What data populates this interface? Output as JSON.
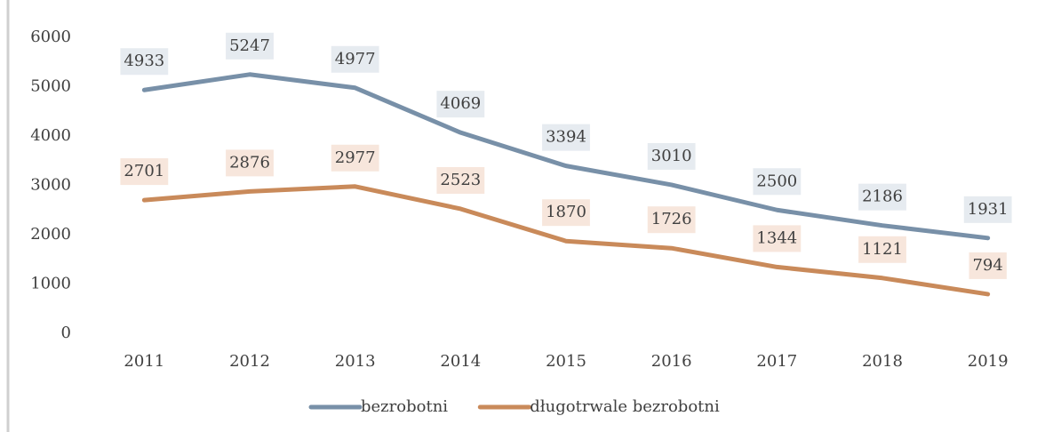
{
  "chart_data": {
    "type": "line",
    "categories": [
      "2011",
      "2012",
      "2013",
      "2014",
      "2015",
      "2016",
      "2017",
      "2018",
      "2019"
    ],
    "series": [
      {
        "name": "bezrobotni",
        "color": "#7890a8",
        "label_bg": "#e6ebf0",
        "values": [
          4933,
          5247,
          4977,
          4069,
          3394,
          3010,
          2500,
          2186,
          1931
        ]
      },
      {
        "name": "długotrwale bezrobotni",
        "color": "#c98a5a",
        "label_bg": "#f7e6dc",
        "values": [
          2701,
          2876,
          2977,
          2523,
          1870,
          1726,
          1344,
          1121,
          794
        ]
      }
    ],
    "ylim": [
      0,
      6000
    ],
    "yticks": [
      0,
      1000,
      2000,
      3000,
      4000,
      5000,
      6000
    ],
    "grid": false,
    "legend": "bottom"
  }
}
